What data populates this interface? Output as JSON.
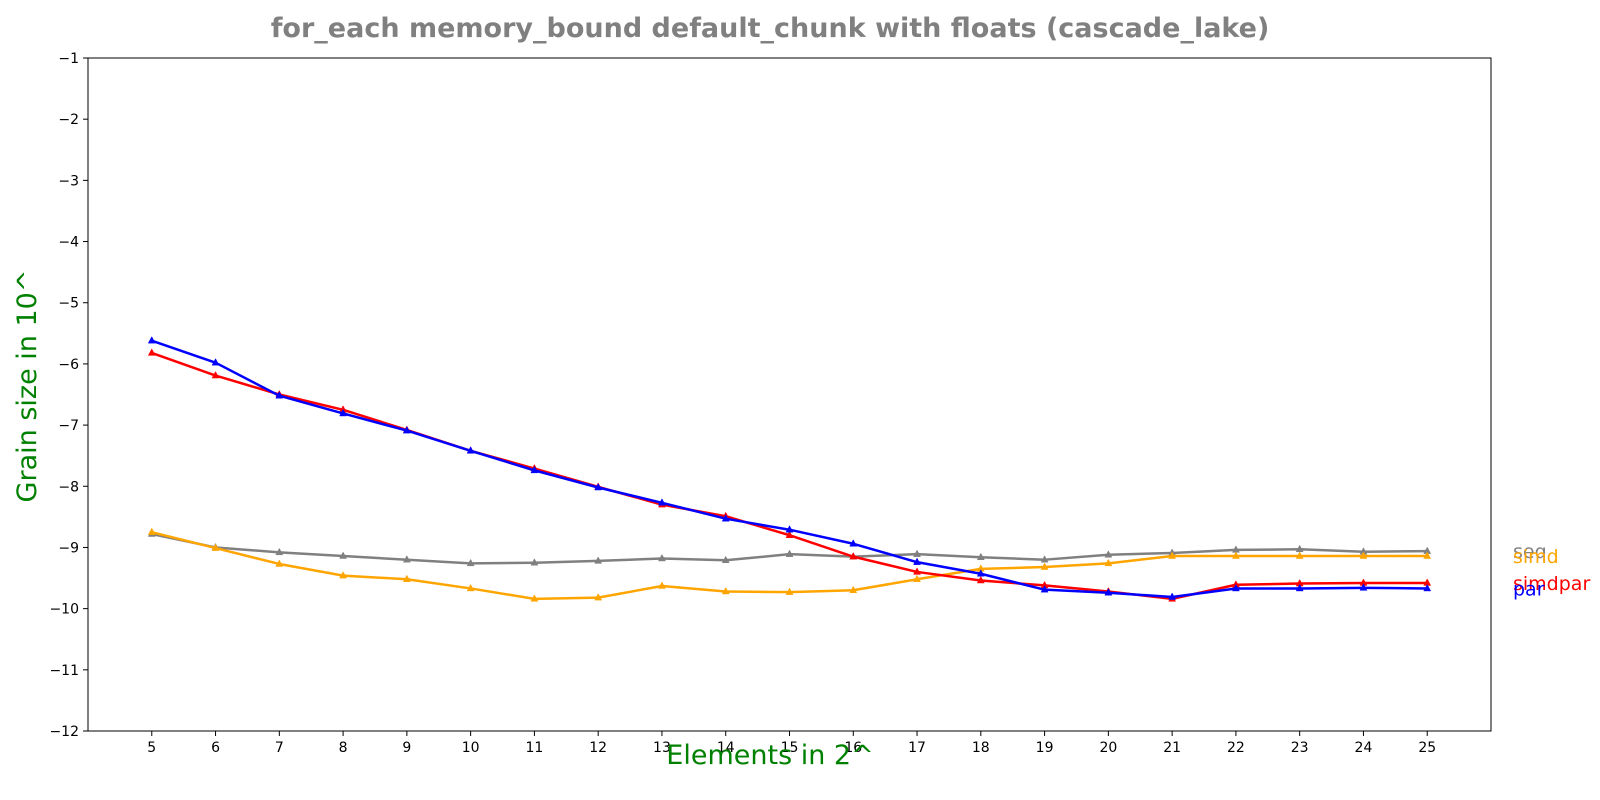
{
  "chart_data": {
    "type": "line",
    "title": "for_each memory_bound default_chunk with floats  (cascade_lake)",
    "xlabel": "Elements in 2^",
    "ylabel": "Grain size in 10^",
    "x": [
      5,
      6,
      7,
      8,
      9,
      10,
      11,
      12,
      13,
      14,
      15,
      16,
      17,
      18,
      19,
      20,
      21,
      22,
      23,
      24,
      25
    ],
    "x_tick_labels": [
      "5",
      "6",
      "7",
      "8",
      "9",
      "10",
      "11",
      "12",
      "13",
      "14",
      "15",
      "16",
      "17",
      "18",
      "19",
      "20",
      "21",
      "22",
      "23",
      "24",
      "25"
    ],
    "xlim": [
      4,
      26
    ],
    "ylim": [
      -12,
      -1
    ],
    "y_ticks": [
      -1,
      -2,
      -3,
      -4,
      -5,
      -6,
      -7,
      -8,
      -9,
      -10,
      -11,
      -12
    ],
    "y_tick_labels": [
      "−1",
      "−2",
      "−3",
      "−4",
      "−5",
      "−6",
      "−7",
      "−8",
      "−9",
      "−10",
      "−11",
      "−12"
    ],
    "grid": false,
    "series": [
      {
        "name": "seq",
        "color": "#808080",
        "values": [
          -8.78,
          -9.0,
          -9.08,
          -9.14,
          -9.2,
          -9.26,
          -9.25,
          -9.22,
          -9.18,
          -9.21,
          -9.11,
          -9.15,
          -9.11,
          -9.16,
          -9.2,
          -9.12,
          -9.09,
          -9.04,
          -9.03,
          -9.07,
          -9.06
        ]
      },
      {
        "name": "simd",
        "color": "#ffa500",
        "values": [
          -8.75,
          -9.01,
          -9.27,
          -9.46,
          -9.52,
          -9.67,
          -9.84,
          -9.82,
          -9.63,
          -9.72,
          -9.73,
          -9.7,
          -9.52,
          -9.35,
          -9.32,
          -9.26,
          -9.14,
          -9.14,
          -9.14,
          -9.14,
          -9.14
        ]
      },
      {
        "name": "simdpar",
        "color": "#ff0000",
        "values": [
          -5.82,
          -6.19,
          -6.5,
          -6.75,
          -7.08,
          -7.42,
          -7.71,
          -8.01,
          -8.3,
          -8.49,
          -8.8,
          -9.15,
          -9.4,
          -9.54,
          -9.62,
          -9.72,
          -9.84,
          -9.61,
          -9.59,
          -9.58,
          -9.58
        ]
      },
      {
        "name": "par",
        "color": "#0000ff",
        "values": [
          -5.62,
          -5.98,
          -6.52,
          -6.81,
          -7.09,
          -7.42,
          -7.74,
          -8.02,
          -8.27,
          -8.53,
          -8.71,
          -8.94,
          -9.24,
          -9.43,
          -9.69,
          -9.74,
          -9.81,
          -9.67,
          -9.67,
          -9.66,
          -9.67
        ]
      }
    ]
  }
}
